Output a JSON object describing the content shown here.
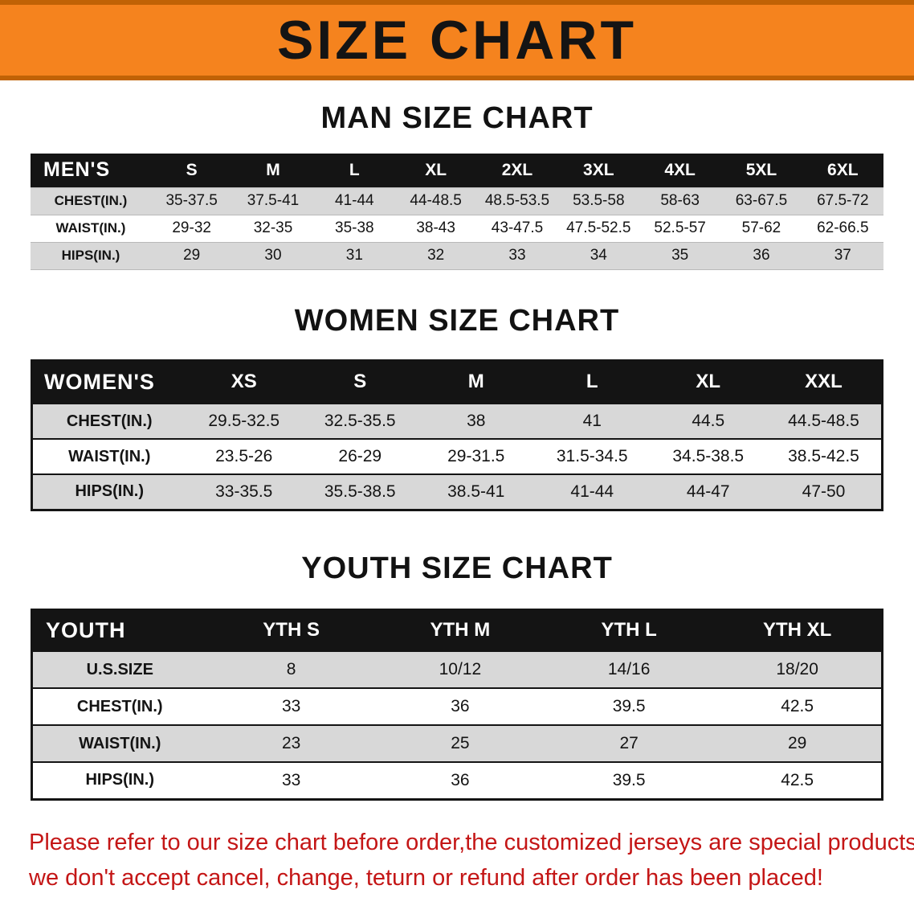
{
  "banner": {
    "title": "SIZE CHART",
    "bg_color": "#F5831E",
    "border_color": "#C06205"
  },
  "men": {
    "heading": "MAN SIZE CHART",
    "header_label": "MEN'S",
    "columns": [
      "S",
      "M",
      "L",
      "XL",
      "2XL",
      "3XL",
      "4XL",
      "5XL",
      "6XL"
    ],
    "rows": [
      {
        "label": "CHEST(IN.)",
        "values": [
          "35-37.5",
          "37.5-41",
          "41-44",
          "44-48.5",
          "48.5-53.5",
          "53.5-58",
          "58-63",
          "63-67.5",
          "67.5-72"
        ]
      },
      {
        "label": "WAIST(IN.)",
        "values": [
          "29-32",
          "32-35",
          "35-38",
          "38-43",
          "43-47.5",
          "47.5-52.5",
          "52.5-57",
          "57-62",
          "62-66.5"
        ]
      },
      {
        "label": "HIPS(IN.)",
        "values": [
          "29",
          "30",
          "31",
          "32",
          "33",
          "34",
          "35",
          "36",
          "37"
        ]
      }
    ]
  },
  "women": {
    "heading": "WOMEN SIZE CHART",
    "header_label": "WOMEN'S",
    "columns": [
      "XS",
      "S",
      "M",
      "L",
      "XL",
      "XXL"
    ],
    "rows": [
      {
        "label": "CHEST(IN.)",
        "values": [
          "29.5-32.5",
          "32.5-35.5",
          "38",
          "41",
          "44.5",
          "44.5-48.5"
        ]
      },
      {
        "label": "WAIST(IN.)",
        "values": [
          "23.5-26",
          "26-29",
          "29-31.5",
          "31.5-34.5",
          "34.5-38.5",
          "38.5-42.5"
        ]
      },
      {
        "label": "HIPS(IN.)",
        "values": [
          "33-35.5",
          "35.5-38.5",
          "38.5-41",
          "41-44",
          "44-47",
          "47-50"
        ]
      }
    ]
  },
  "youth": {
    "heading": "YOUTH SIZE CHART",
    "header_label": "YOUTH",
    "columns": [
      "YTH S",
      "YTH M",
      "YTH L",
      "YTH XL"
    ],
    "rows": [
      {
        "label": "U.S.SIZE",
        "values": [
          "8",
          "10/12",
          "14/16",
          "18/20"
        ]
      },
      {
        "label": "CHEST(IN.)",
        "values": [
          "33",
          "36",
          "39.5",
          "42.5"
        ]
      },
      {
        "label": "WAIST(IN.)",
        "values": [
          "23",
          "25",
          "27",
          "29"
        ]
      },
      {
        "label": "HIPS(IN.)",
        "values": [
          "33",
          "36",
          "39.5",
          "42.5"
        ]
      }
    ]
  },
  "footer": {
    "color": "#C41616",
    "lines": [
      "Please refer to our size chart before order,the customized jerseys are special products,",
      "we don't accept cancel, change, teturn or refund after order has been placed!"
    ]
  }
}
